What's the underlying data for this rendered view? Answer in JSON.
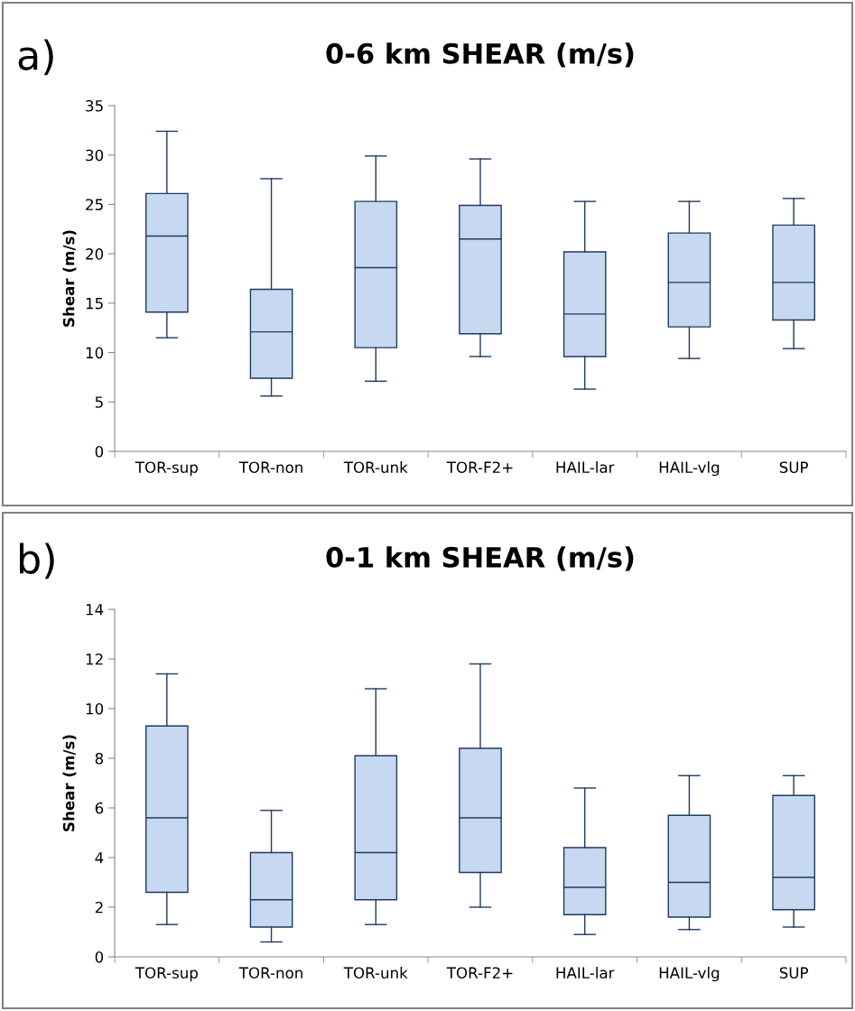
{
  "chart_data": [
    {
      "type": "box",
      "title": "0-6 km SHEAR (m/s)",
      "ylabel": "Shear (m/s)",
      "annotations": [
        "a)"
      ],
      "categories": [
        "TOR-sup",
        "TOR-non",
        "TOR-unk",
        "TOR-F2+",
        "HAIL-lar",
        "HAIL-vlg",
        "SUP"
      ],
      "color": "#c6d9f1",
      "ylim": [
        0,
        35
      ],
      "yticks": [
        0,
        5,
        10,
        15,
        20,
        25,
        30,
        35
      ],
      "grid": false,
      "legend": false,
      "boxes": [
        {
          "low": 11.5,
          "q1": 14.1,
          "median": 21.8,
          "q3": 26.1,
          "high": 32.4
        },
        {
          "low": 5.6,
          "q1": 7.4,
          "median": 12.1,
          "q3": 16.4,
          "high": 27.6
        },
        {
          "low": 7.1,
          "q1": 10.5,
          "median": 18.6,
          "q3": 25.3,
          "high": 29.9
        },
        {
          "low": 9.6,
          "q1": 11.9,
          "median": 21.5,
          "q3": 24.9,
          "high": 29.6
        },
        {
          "low": 6.3,
          "q1": 9.6,
          "median": 13.9,
          "q3": 20.2,
          "high": 25.3
        },
        {
          "low": 9.4,
          "q1": 12.6,
          "median": 17.1,
          "q3": 22.1,
          "high": 25.3
        },
        {
          "low": 10.4,
          "q1": 13.3,
          "median": 17.1,
          "q3": 22.9,
          "high": 25.6
        }
      ]
    },
    {
      "type": "box",
      "title": "0-1 km SHEAR (m/s)",
      "ylabel": "Shear (m/s)",
      "annotations": [
        "b)"
      ],
      "categories": [
        "TOR-sup",
        "TOR-non",
        "TOR-unk",
        "TOR-F2+",
        "HAIL-lar",
        "HAIL-vlg",
        "SUP"
      ],
      "color": "#c6d9f1",
      "ylim": [
        0,
        14
      ],
      "yticks": [
        0,
        2,
        4,
        6,
        8,
        10,
        12,
        14
      ],
      "grid": false,
      "legend": false,
      "boxes": [
        {
          "low": 1.3,
          "q1": 2.6,
          "median": 5.6,
          "q3": 9.3,
          "high": 11.4
        },
        {
          "low": 0.6,
          "q1": 1.2,
          "median": 2.3,
          "q3": 4.2,
          "high": 5.9
        },
        {
          "low": 1.3,
          "q1": 2.3,
          "median": 4.2,
          "q3": 8.1,
          "high": 10.8
        },
        {
          "low": 2.0,
          "q1": 3.4,
          "median": 5.6,
          "q3": 8.4,
          "high": 11.8
        },
        {
          "low": 0.9,
          "q1": 1.7,
          "median": 2.8,
          "q3": 4.4,
          "high": 6.8
        },
        {
          "low": 1.1,
          "q1": 1.6,
          "median": 3.0,
          "q3": 5.7,
          "high": 7.3
        },
        {
          "low": 1.2,
          "q1": 1.9,
          "median": 3.2,
          "q3": 6.5,
          "high": 7.3
        }
      ]
    }
  ]
}
